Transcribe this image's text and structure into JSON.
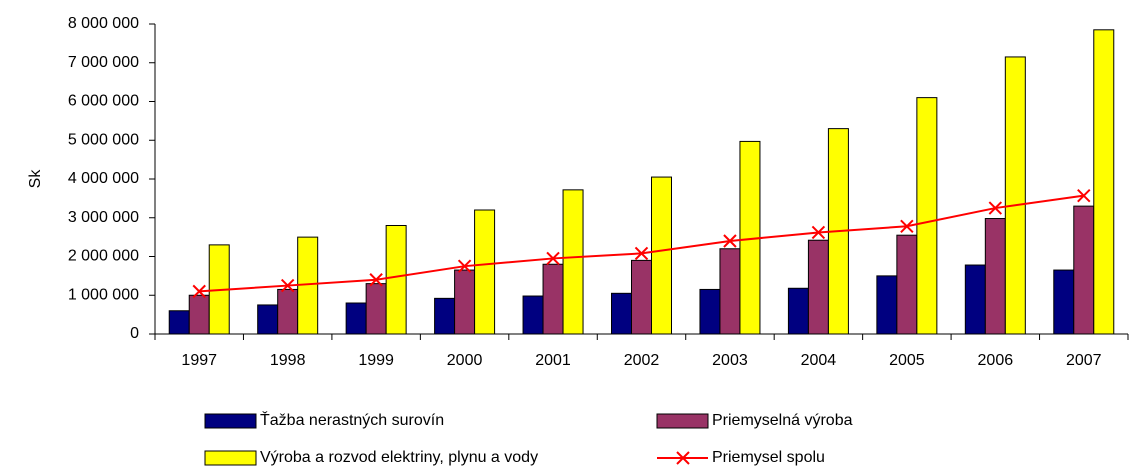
{
  "chart_data": {
    "type": "bar",
    "y_label": "Sk",
    "categories": [
      "1997",
      "1998",
      "1999",
      "2000",
      "2001",
      "2002",
      "2003",
      "2004",
      "2005",
      "2006",
      "2007"
    ],
    "series": [
      {
        "name": "Ťažba nerastných surovín",
        "color": "#000080",
        "values": [
          600000,
          750000,
          800000,
          920000,
          980000,
          1050000,
          1150000,
          1180000,
          1500000,
          1780000,
          1650000
        ]
      },
      {
        "name": "Priemyselná výroba",
        "color": "#993366",
        "values": [
          1000000,
          1150000,
          1300000,
          1650000,
          1800000,
          1900000,
          2200000,
          2420000,
          2550000,
          2980000,
          3300000
        ]
      },
      {
        "name": "Výroba a rozvod elektriny, plynu a vody",
        "color": "#ffff00",
        "values": [
          2300000,
          2500000,
          2800000,
          3200000,
          3720000,
          4050000,
          4970000,
          5300000,
          6100000,
          7150000,
          7850000
        ]
      },
      {
        "name": "Priemysel spolu",
        "color": "#ff0000",
        "type": "line",
        "values": [
          1100000,
          1250000,
          1400000,
          1750000,
          1950000,
          2080000,
          2400000,
          2620000,
          2780000,
          3250000,
          3570000
        ]
      }
    ],
    "ylim": [
      0,
      8000000
    ],
    "yticks": [
      0,
      {
        "value": 1000000,
        "label": "1 000 000"
      },
      {
        "value": 2000000,
        "label": "2 000 000"
      },
      {
        "value": 3000000,
        "label": "3 000 000"
      },
      {
        "value": 4000000,
        "label": "4 000 000"
      },
      {
        "value": 5000000,
        "label": "5 000 000"
      },
      {
        "value": 6000000,
        "label": "6 000 000"
      },
      {
        "value": 7000000,
        "label": "7 000 000"
      },
      {
        "value": 8000000,
        "label": "8 000 000"
      }
    ],
    "legend": "bottom"
  }
}
